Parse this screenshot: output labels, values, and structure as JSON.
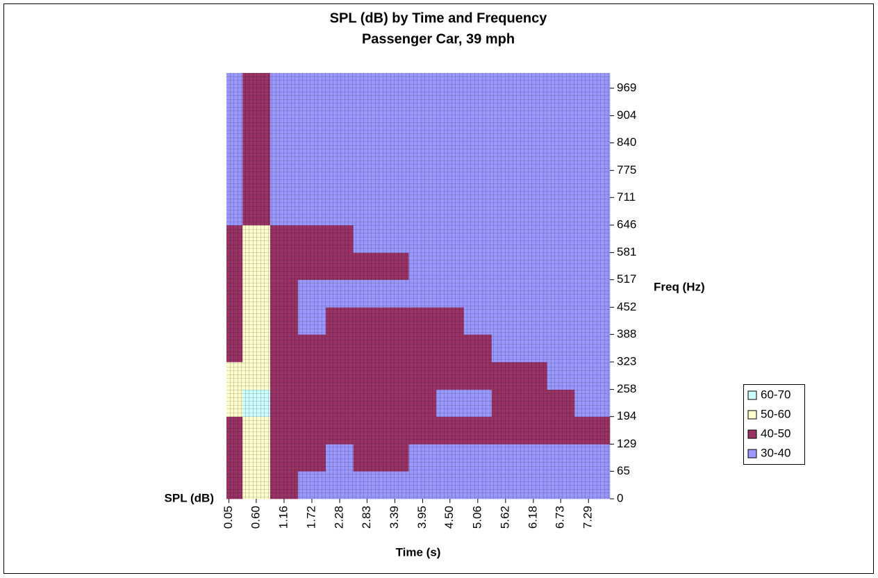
{
  "chart_data": {
    "type": "contour",
    "title": "SPL (dB) by Time and Frequency",
    "subtitle": "Passenger Car, 39 mph",
    "z_label": "SPL (dB)",
    "x_label": "Time (s)",
    "y_label": "Freq (Hz)",
    "xlim": [
      0,
      7.72
    ],
    "xticks": [
      0.05,
      {
        "value": 0.6,
        "label": "0.60"
      },
      1.16,
      1.72,
      2.28,
      2.83,
      3.39,
      3.95,
      {
        "value": 4.5,
        "label": "4.50"
      },
      5.06,
      5.62,
      6.18,
      6.73,
      7.29
    ],
    "ylim": [
      0,
      1005
    ],
    "yticks": [
      0,
      65,
      129,
      194,
      258,
      323,
      388,
      452,
      517,
      581,
      646,
      711,
      775,
      840,
      904,
      969
    ],
    "z": [
      [
        45,
        55,
        45,
        35,
        35,
        35,
        35,
        35,
        35,
        35,
        35,
        35,
        35,
        35
      ],
      [
        45,
        55,
        45,
        45,
        35,
        45,
        45,
        35,
        35,
        35,
        35,
        35,
        35,
        35
      ],
      [
        45,
        55,
        45,
        45,
        45,
        45,
        45,
        45,
        45,
        45,
        45,
        45,
        45,
        45
      ],
      [
        55,
        65,
        45,
        45,
        45,
        45,
        45,
        45,
        35,
        35,
        45,
        45,
        45,
        35
      ],
      [
        55,
        55,
        45,
        45,
        45,
        45,
        45,
        45,
        45,
        45,
        45,
        45,
        35,
        35
      ],
      [
        45,
        55,
        45,
        45,
        45,
        45,
        45,
        45,
        45,
        45,
        35,
        35,
        35,
        35
      ],
      [
        45,
        55,
        45,
        35,
        45,
        45,
        45,
        45,
        45,
        35,
        35,
        35,
        35,
        35
      ],
      [
        45,
        55,
        45,
        35,
        35,
        35,
        35,
        35,
        35,
        35,
        35,
        35,
        35,
        35
      ],
      [
        45,
        55,
        45,
        45,
        45,
        45,
        45,
        35,
        35,
        35,
        35,
        35,
        35,
        35
      ],
      [
        45,
        55,
        45,
        45,
        45,
        35,
        35,
        35,
        35,
        35,
        35,
        35,
        35,
        35
      ],
      [
        35,
        45,
        35,
        35,
        35,
        35,
        35,
        35,
        35,
        35,
        35,
        35,
        35,
        35
      ],
      [
        35,
        45,
        35,
        35,
        35,
        35,
        35,
        35,
        35,
        35,
        35,
        35,
        35,
        35
      ],
      [
        35,
        45,
        35,
        35,
        35,
        35,
        35,
        35,
        35,
        35,
        35,
        35,
        35,
        35
      ],
      [
        35,
        45,
        35,
        35,
        35,
        35,
        35,
        35,
        35,
        35,
        35,
        35,
        35,
        35
      ],
      [
        35,
        45,
        35,
        35,
        35,
        35,
        35,
        35,
        35,
        35,
        35,
        35,
        35,
        35
      ],
      [
        35,
        45,
        35,
        35,
        35,
        35,
        35,
        35,
        35,
        35,
        35,
        35,
        35,
        35
      ]
    ],
    "series": [
      {
        "name": "60-70",
        "color": "#ccffff"
      },
      {
        "name": "50-60",
        "color": "#ffffcc"
      },
      {
        "name": "40-50",
        "color": "#993366"
      },
      {
        "name": "30-40",
        "color": "#9999ff"
      }
    ]
  }
}
